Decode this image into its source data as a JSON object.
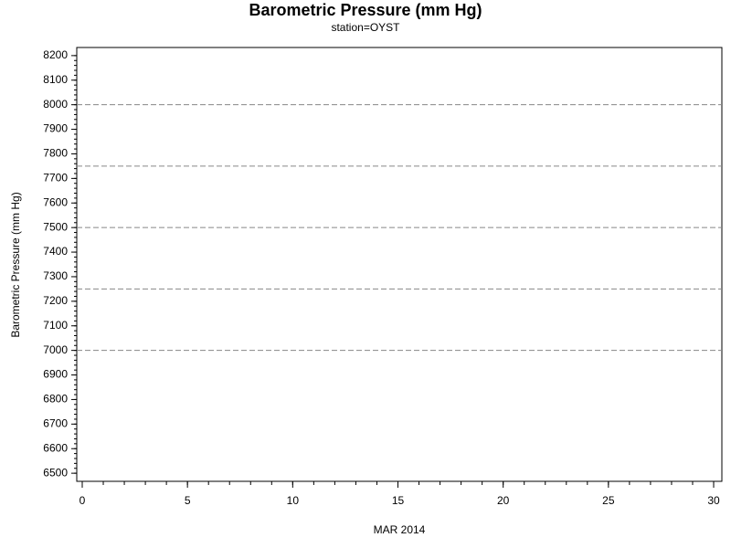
{
  "chart_data": {
    "type": "line",
    "title": "Barometric Pressure (mm Hg)",
    "subtitle": "station=OYST",
    "xlabel": "MAR 2014",
    "ylabel": "Barometric Pressure (mm Hg)",
    "series": [],
    "xlim": [
      -0.26,
      30.39
    ],
    "xticks": [
      0,
      5,
      10,
      15,
      20,
      25,
      30
    ],
    "xminor": 1,
    "ylim": [
      6467,
      8233
    ],
    "yticks": [
      6500,
      6600,
      6700,
      6800,
      6900,
      7000,
      7100,
      7200,
      7300,
      7400,
      7500,
      7600,
      7700,
      7800,
      7900,
      8000,
      8100,
      8200
    ],
    "yminor": 20,
    "reflines": [
      7000,
      7250,
      7500,
      7750,
      8000
    ],
    "refline_color": "#888888"
  }
}
